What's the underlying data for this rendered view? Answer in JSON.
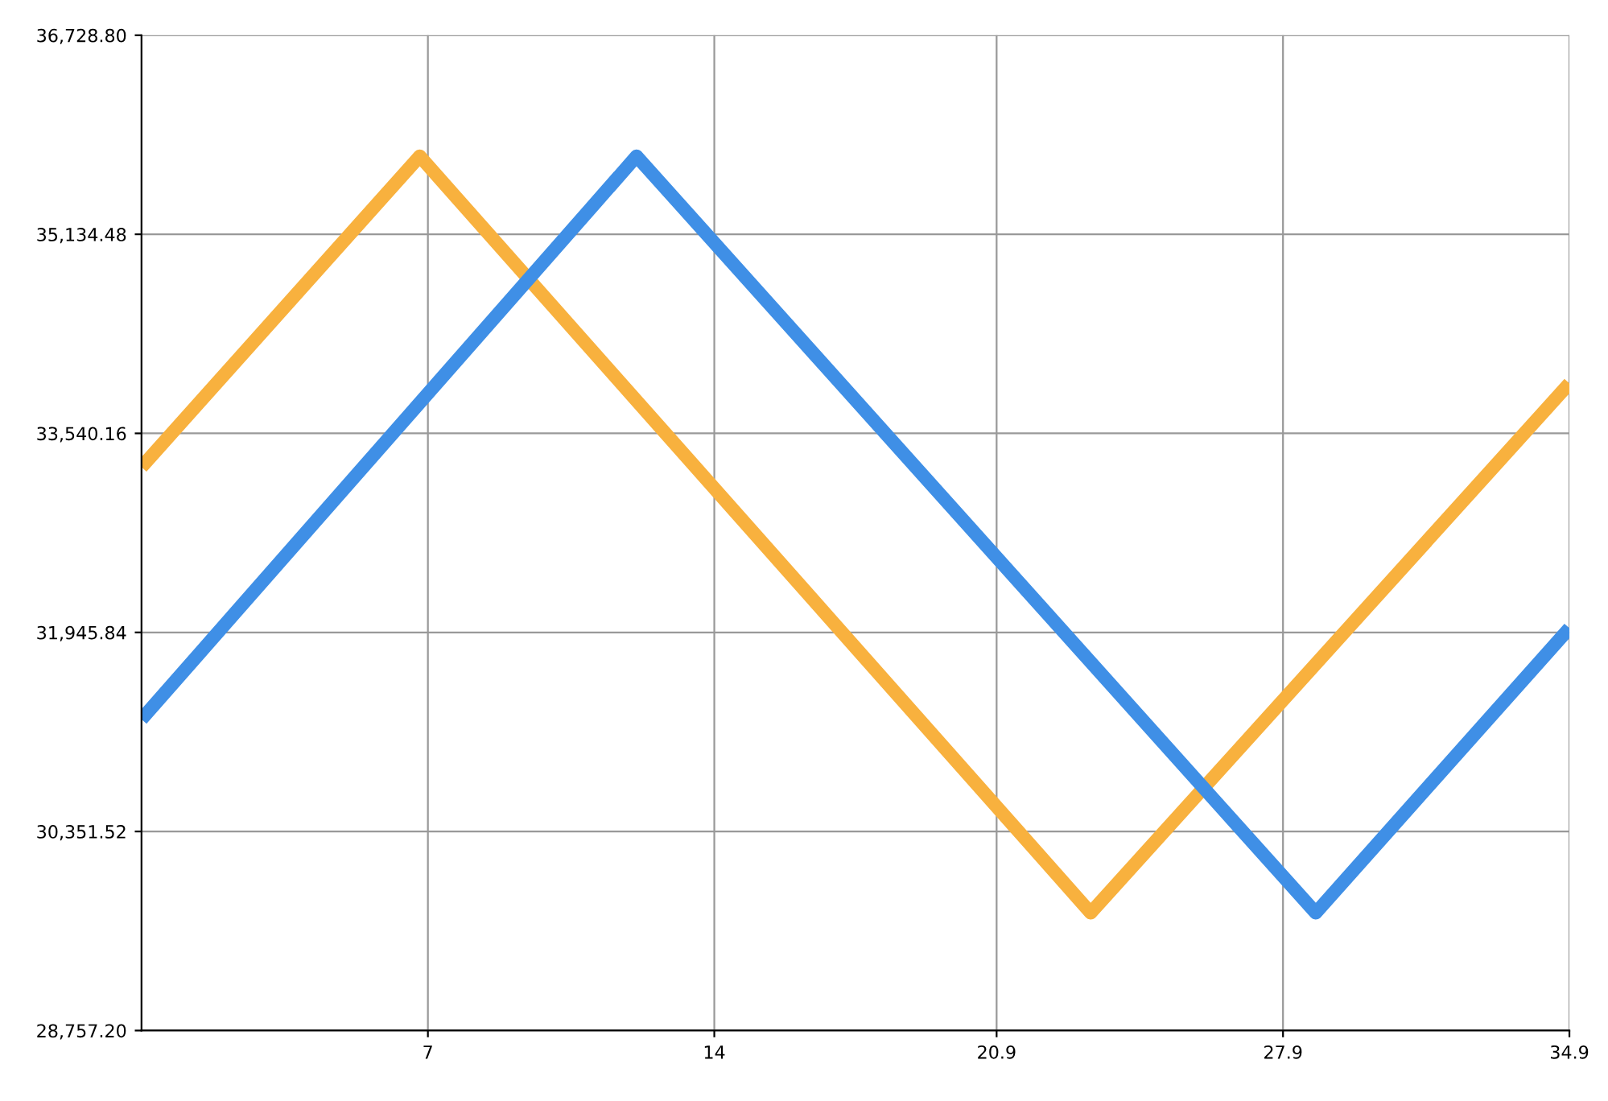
{
  "chart_data": {
    "type": "line",
    "xlim": [
      0,
      34.9
    ],
    "xticks": [
      7,
      14,
      20.9,
      27.9,
      34.9
    ],
    "ylim": [
      28757.2,
      36728.8
    ],
    "yticks": [
      {
        "value": 28757.2,
        "label": "28,757.20"
      },
      {
        "value": 30351.52,
        "label": "30,351.52"
      },
      {
        "value": 31945.84,
        "label": "31,945.84"
      },
      {
        "value": 33540.16,
        "label": "33,540.16"
      },
      {
        "value": 35134.48,
        "label": "35,134.48"
      },
      {
        "value": 36728.8,
        "label": "36,728.80"
      }
    ],
    "grid": true,
    "legend": false,
    "series": [
      {
        "color": "#f8b13e",
        "x": [
          0,
          6.8,
          23.2,
          34.9
        ],
        "values": [
          33270,
          35760,
          29700,
          33940
        ]
      },
      {
        "color": "#3f8fe6",
        "x": [
          0,
          12.1,
          28.7,
          34.9
        ],
        "values": [
          31250,
          35760,
          29700,
          31980
        ]
      }
    ]
  }
}
